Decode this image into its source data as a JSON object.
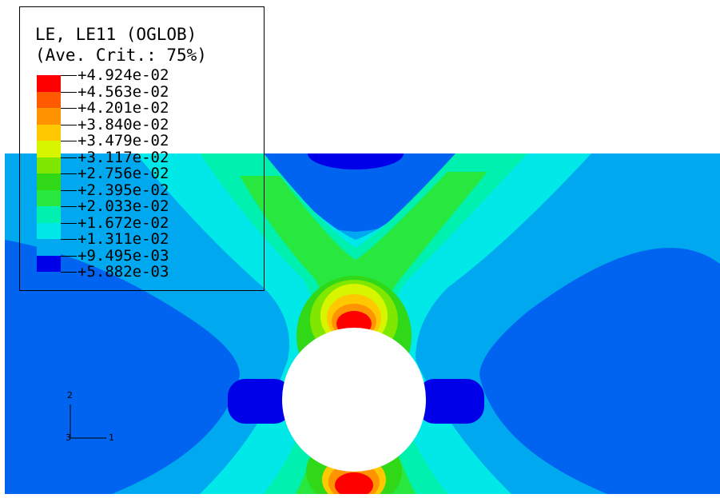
{
  "legend": {
    "title": "LE, LE11 (OGLOB)",
    "subtitle": "(Ave. Crit.: 75%)",
    "levels": [
      {
        "label": "+4.924e-02",
        "color": "#ff0000"
      },
      {
        "label": "+4.563e-02",
        "color": "#ff5a00"
      },
      {
        "label": "+4.201e-02",
        "color": "#ff9400"
      },
      {
        "label": "+3.840e-02",
        "color": "#ffc800"
      },
      {
        "label": "+3.479e-02",
        "color": "#d8f500"
      },
      {
        "label": "+3.117e-02",
        "color": "#80e800"
      },
      {
        "label": "+2.756e-02",
        "color": "#30d818"
      },
      {
        "label": "+2.395e-02",
        "color": "#28e840"
      },
      {
        "label": "+2.033e-02",
        "color": "#00f0b0"
      },
      {
        "label": "+1.672e-02",
        "color": "#00e8e8"
      },
      {
        "label": "+1.311e-02",
        "color": "#00a8f0"
      },
      {
        "label": "+9.495e-03",
        "color": "#0064f0"
      },
      {
        "label": "+5.882e-03",
        "color": "#0000e8"
      }
    ]
  },
  "triad": {
    "axis_x": "1",
    "axis_y": "2",
    "axis_z": "3"
  },
  "colors": {
    "background": "#ffffff",
    "plate_base": "#0a5ef0"
  }
}
